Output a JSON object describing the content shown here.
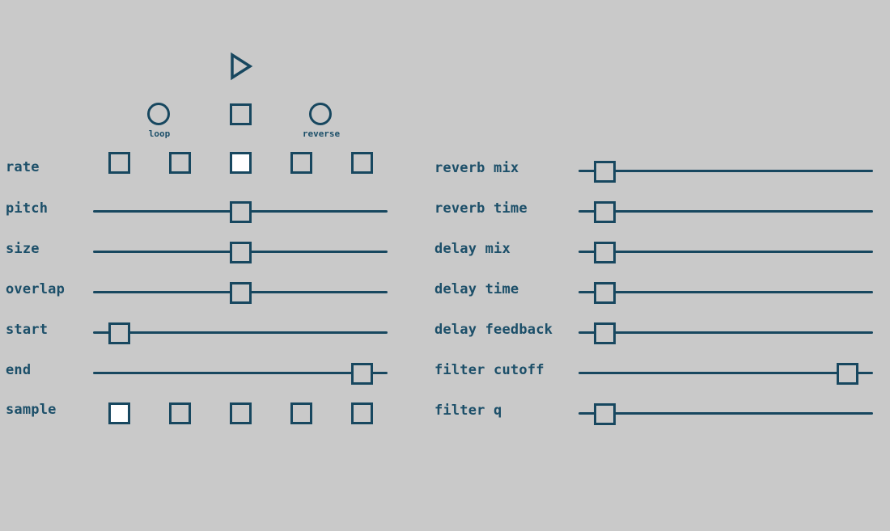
{
  "colors": {
    "background": "#c9c9c9",
    "accent": "#17475f",
    "selected_fill": "#ffffff"
  },
  "transport": {
    "play_icon": "play-icon",
    "loop_label": "loop",
    "reverse_label": "reverse"
  },
  "rate": {
    "label": "rate",
    "options": 5,
    "selected_index": 2
  },
  "sample": {
    "label": "sample",
    "options": 5,
    "selected_index": 0
  },
  "left_sliders": [
    {
      "label": "pitch",
      "value": 0.5
    },
    {
      "label": "size",
      "value": 0.5
    },
    {
      "label": "overlap",
      "value": 0.5
    },
    {
      "label": "start",
      "value": 0.0
    },
    {
      "label": "end",
      "value": 1.0
    }
  ],
  "right_sliders": [
    {
      "label": "reverb mix",
      "value": 0.0
    },
    {
      "label": "reverb time",
      "value": 0.0
    },
    {
      "label": "delay mix",
      "value": 0.0
    },
    {
      "label": "delay time",
      "value": 0.0
    },
    {
      "label": "delay feedback",
      "value": 0.0
    },
    {
      "label": "filter cutoff",
      "value": 1.0
    },
    {
      "label": "filter q",
      "value": 0.0
    }
  ]
}
